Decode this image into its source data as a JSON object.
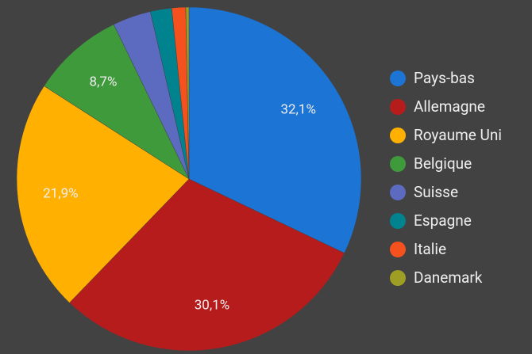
{
  "chart_data": {
    "type": "pie",
    "categories": [
      "Pays-bas",
      "Allemagne",
      "Royaume Uni",
      "Belgique",
      "Suisse",
      "Espagne",
      "Italie",
      "Danemark"
    ],
    "values": [
      32.1,
      30.1,
      21.9,
      8.7,
      3.6,
      2.0,
      1.3,
      0.3
    ],
    "value_labels": [
      "32,1%",
      "30,1%",
      "21,9%",
      "8,7%",
      null,
      null,
      null,
      null
    ],
    "colors": [
      "#1c74d4",
      "#b71c1c",
      "#ffb000",
      "#3f9a3c",
      "#5c6bc0",
      "#00838f",
      "#f4511e",
      "#9e9d24"
    ],
    "legend": "right"
  }
}
